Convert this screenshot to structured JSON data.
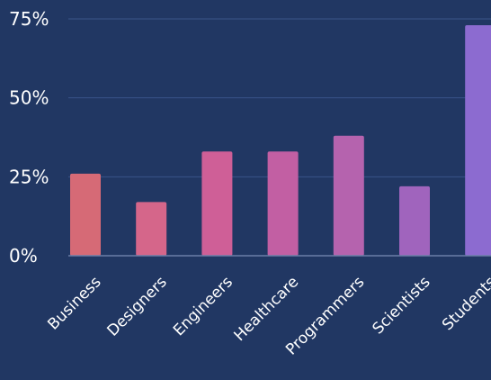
{
  "chart_data": {
    "type": "bar",
    "categories": [
      "Business",
      "Designers",
      "Engineers",
      "Healthcare",
      "Programmers",
      "Scientists",
      "Students"
    ],
    "values": [
      26,
      17,
      33,
      33,
      38,
      22,
      73
    ],
    "ylim": [
      0,
      75
    ],
    "yticks": [
      0,
      25,
      50,
      75
    ],
    "ytick_labels": [
      "0%",
      "25%",
      "50%",
      "75%"
    ],
    "grid": true,
    "bar_colors": [
      "#d66a76",
      "#d5668a",
      "#cf5f97",
      "#c25fa3",
      "#b563ae",
      "#a064bd",
      "#8c6bd0"
    ],
    "background": "#213763"
  }
}
